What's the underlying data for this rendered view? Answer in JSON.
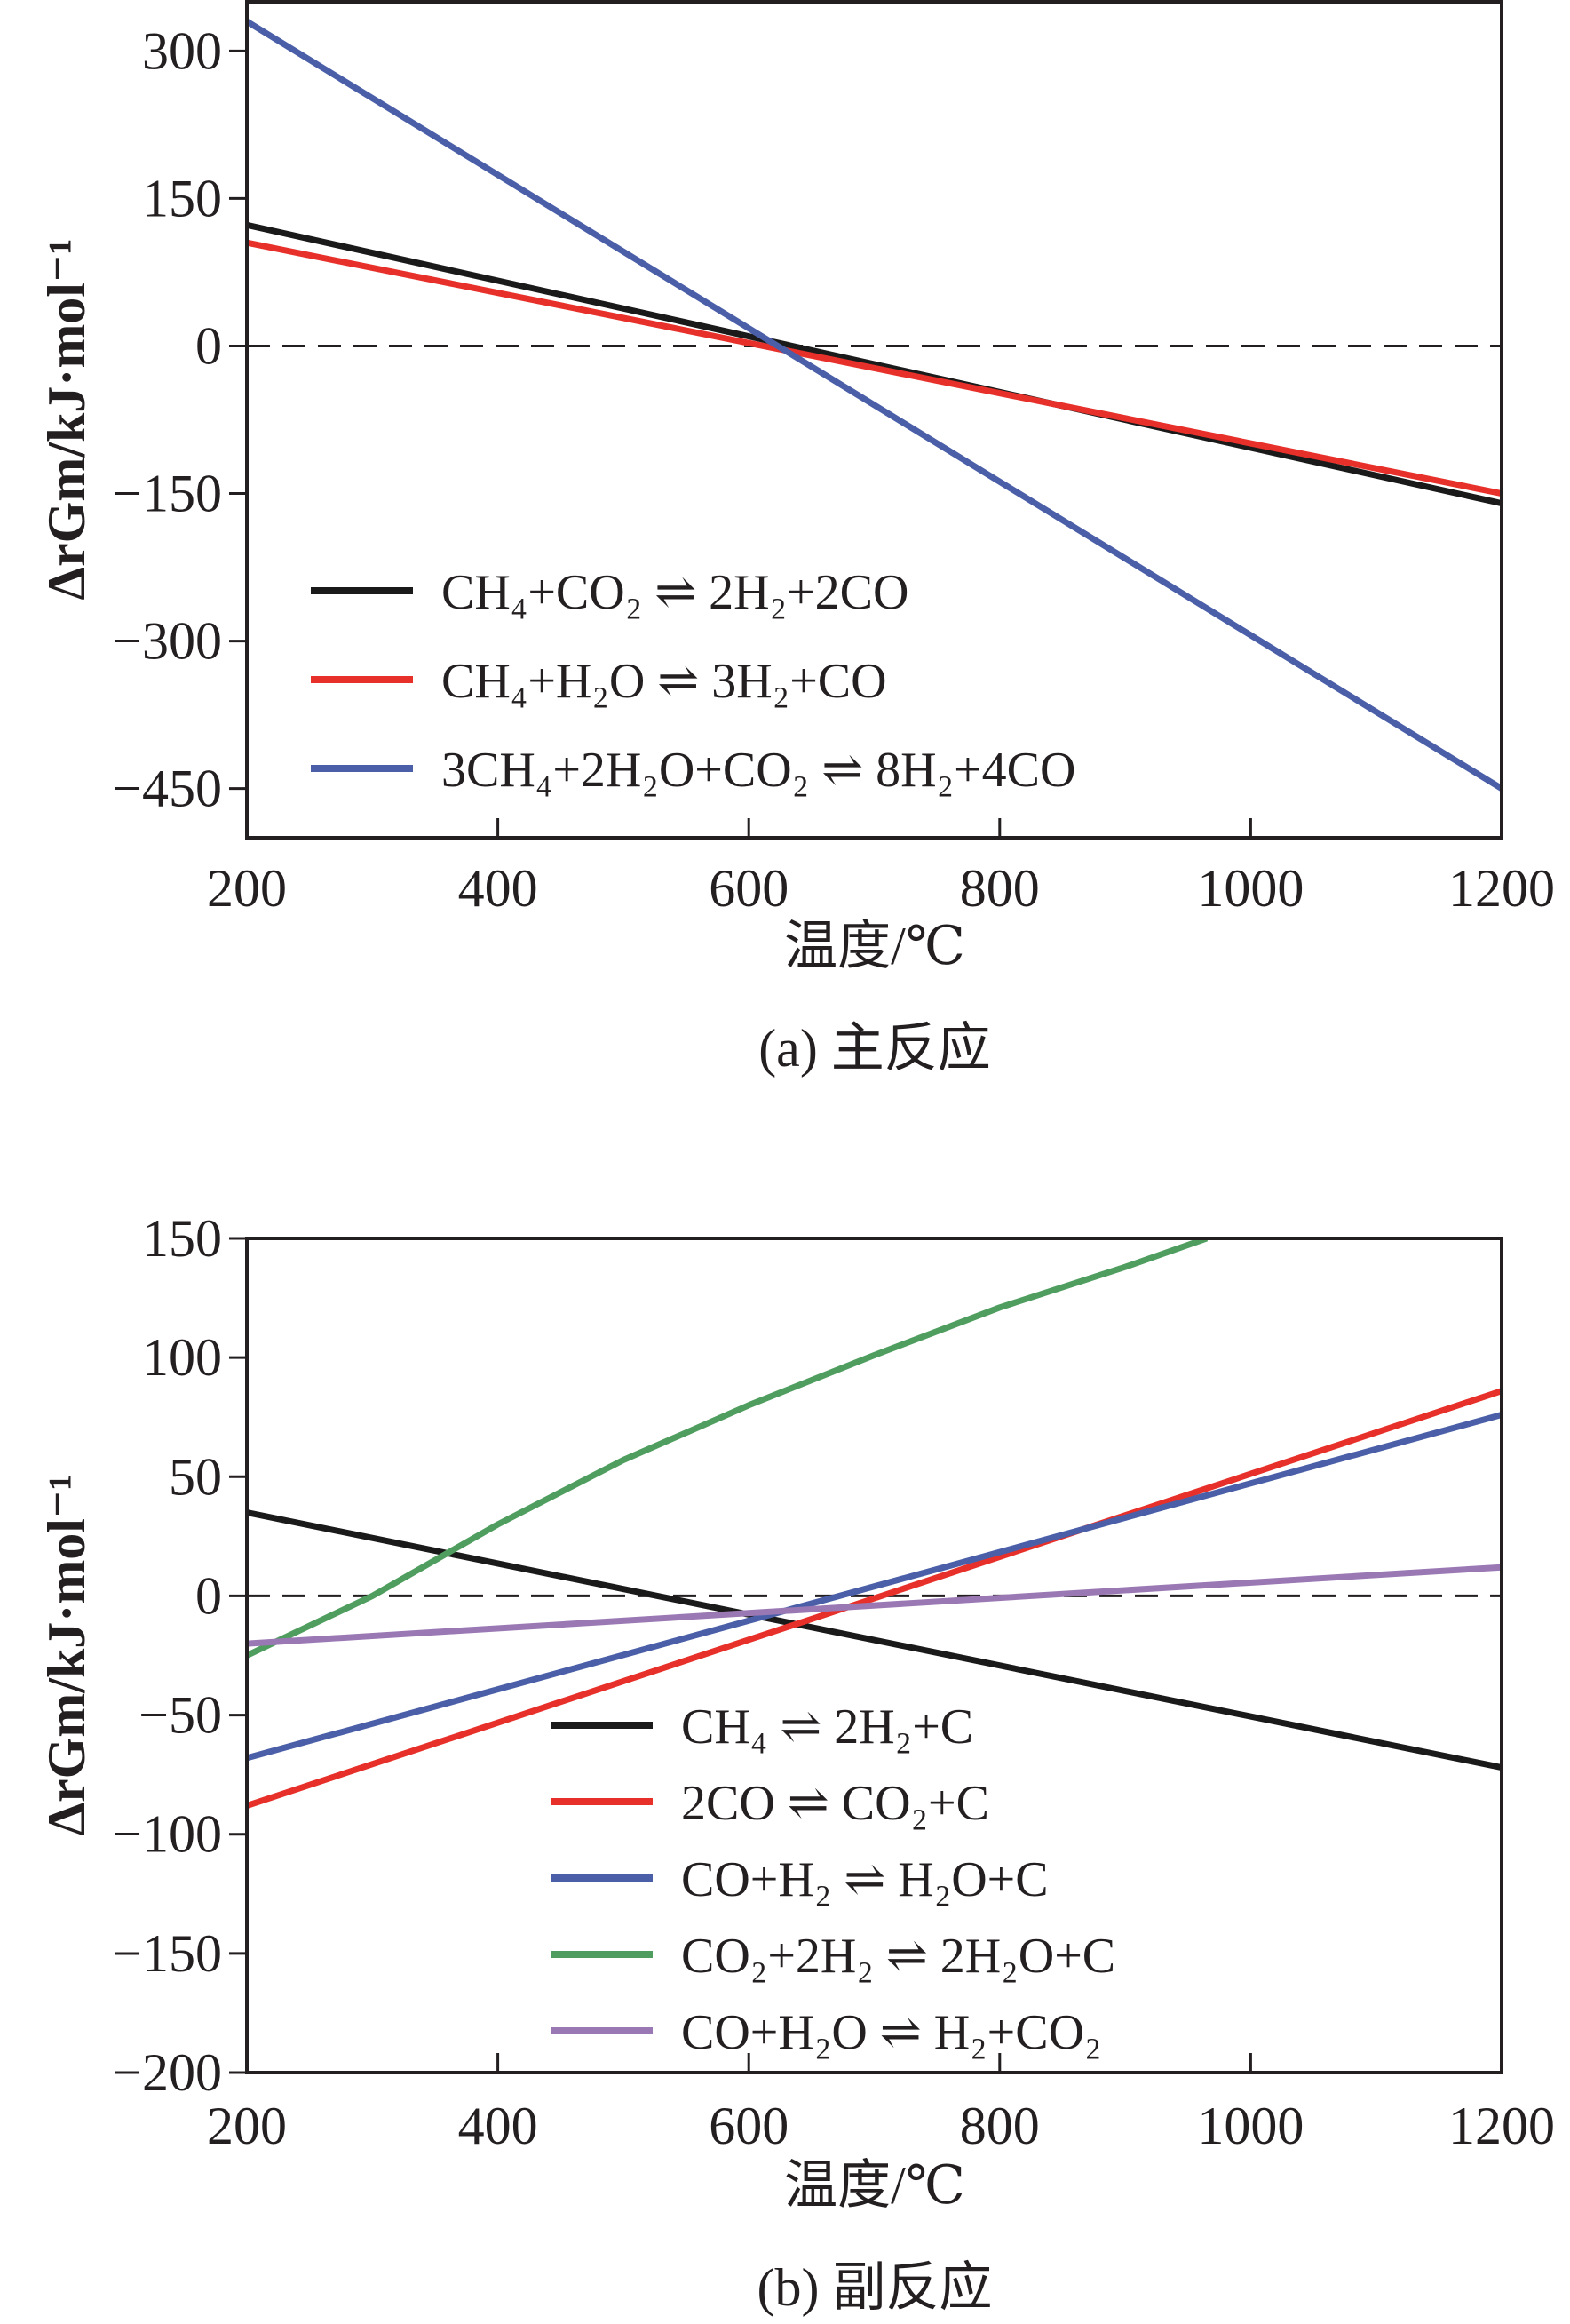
{
  "chart_data": [
    {
      "type": "line",
      "caption": "(a) 主反应",
      "xlabel": "温度/℃",
      "ylabel": "ΔrGm/kJ·mol⁻¹",
      "xlim": [
        200,
        1200
      ],
      "ylim": [
        -500,
        350
      ],
      "xticks": [
        200,
        400,
        600,
        800,
        1000,
        1200
      ],
      "yticks": [
        300,
        150,
        0,
        -150,
        -300,
        -450
      ],
      "ytick_labels": [
        "300",
        "150",
        "0",
        "−150",
        "−300",
        "−450"
      ],
      "zero_line": "dashed",
      "legend_position": "lower-left",
      "series": [
        {
          "name": "CH₄+CO₂ ⇌ 2H₂+2CO",
          "color": "#1a1a1a",
          "x": [
            200,
            1200
          ],
          "y": [
            123,
            -160
          ]
        },
        {
          "name": "CH₄+H₂O ⇌ 3H₂+CO",
          "color": "#e8302a",
          "x": [
            200,
            1200
          ],
          "y": [
            105,
            -150
          ]
        },
        {
          "name": "3CH₄+2H₂O+CO₂ ⇌ 8H₂+4CO",
          "color": "#4a5fa8",
          "x": [
            200,
            1200
          ],
          "y": [
            330,
            -450
          ]
        }
      ]
    },
    {
      "type": "line",
      "caption": "(b) 副反应",
      "xlabel": "温度/℃",
      "ylabel": "ΔrGm/kJ·mol⁻¹",
      "xlim": [
        200,
        1200
      ],
      "ylim": [
        -200,
        150
      ],
      "xticks": [
        200,
        400,
        600,
        800,
        1000,
        1200
      ],
      "yticks": [
        150,
        100,
        50,
        0,
        -50,
        -100,
        -150,
        -200
      ],
      "ytick_labels": [
        "150",
        "100",
        "50",
        "0",
        "−50",
        "−100",
        "−150",
        "−200"
      ],
      "zero_line": "dashed",
      "legend_position": "lower-center",
      "series": [
        {
          "name": "CH₄ ⇌ 2H₂+C",
          "color": "#1a1a1a",
          "x": [
            200,
            1200
          ],
          "y": [
            35,
            -72
          ]
        },
        {
          "name": "2CO ⇌ CO₂+C",
          "color": "#e8302a",
          "x": [
            200,
            1200
          ],
          "y": [
            -88,
            86
          ]
        },
        {
          "name": "CO+H₂ ⇌ H₂O+C",
          "color": "#4a5fa8",
          "x": [
            200,
            1200
          ],
          "y": [
            -68,
            76
          ]
        },
        {
          "name": "CO₂+2H₂ ⇌ 2H₂O+C",
          "color": "#4f9e5f",
          "x": [
            200,
            300,
            400,
            500,
            600,
            700,
            800,
            900,
            965
          ],
          "y": [
            -25,
            0,
            30,
            57,
            80,
            101,
            121,
            138,
            150
          ]
        },
        {
          "name": "CO+H₂O ⇌ H₂+CO₂",
          "color": "#9a78b4",
          "x": [
            200,
            1200
          ],
          "y": [
            -20,
            12
          ]
        }
      ]
    }
  ]
}
